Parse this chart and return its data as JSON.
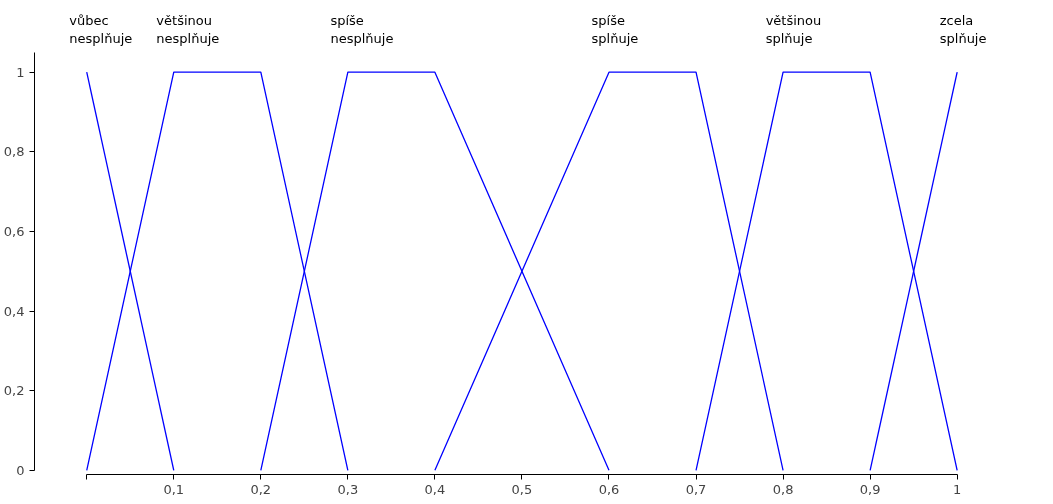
{
  "chart_data": {
    "type": "line",
    "legend": false,
    "grid": false,
    "marker": "none",
    "line_style": "solid",
    "xlim": [
      0,
      1
    ],
    "ylim": [
      0,
      1.05
    ],
    "xticks": [
      {
        "value": 0,
        "label": null
      },
      {
        "value": 0.1,
        "label": "0,1"
      },
      {
        "value": 0.2,
        "label": "0,2"
      },
      {
        "value": 0.3,
        "label": "0,3"
      },
      {
        "value": 0.4,
        "label": "0,4"
      },
      {
        "value": 0.5,
        "label": "0,5"
      },
      {
        "value": 0.6,
        "label": "0,6"
      },
      {
        "value": 0.7,
        "label": "0,7"
      },
      {
        "value": 0.8,
        "label": "0,8"
      },
      {
        "value": 0.9,
        "label": "0,9"
      },
      1
    ],
    "yticks": [
      0,
      {
        "value": 0.2,
        "label": "0,2"
      },
      {
        "value": 0.4,
        "label": "0,4"
      },
      {
        "value": 0.6,
        "label": "0,6"
      },
      {
        "value": 0.8,
        "label": "0,8"
      },
      1
    ],
    "series": [
      {
        "name": "vůbec nesplňuje",
        "color": "#0000ff",
        "x": [
          0,
          0.1
        ],
        "values": [
          1,
          0
        ]
      },
      {
        "name": "většinou nesplňuje",
        "color": "#0000ff",
        "x": [
          0,
          0.1,
          0.2,
          0.3
        ],
        "values": [
          0,
          1,
          1,
          0
        ]
      },
      {
        "name": "spíše nesplňuje",
        "color": "#0000ff",
        "x": [
          0.2,
          0.3,
          0.4,
          0.6
        ],
        "values": [
          0,
          1,
          1,
          0
        ]
      },
      {
        "name": "spíše splňuje",
        "color": "#0000ff",
        "x": [
          0.4,
          0.6,
          0.7,
          0.8
        ],
        "values": [
          0,
          1,
          1,
          0
        ]
      },
      {
        "name": "většinou splňuje",
        "color": "#0000ff",
        "x": [
          0.7,
          0.8,
          0.9,
          1
        ],
        "values": [
          0,
          1,
          1,
          0
        ]
      },
      {
        "name": "zcela splňuje",
        "color": "#0000ff",
        "x": [
          0.9,
          1
        ],
        "values": [
          0,
          1
        ]
      }
    ]
  }
}
